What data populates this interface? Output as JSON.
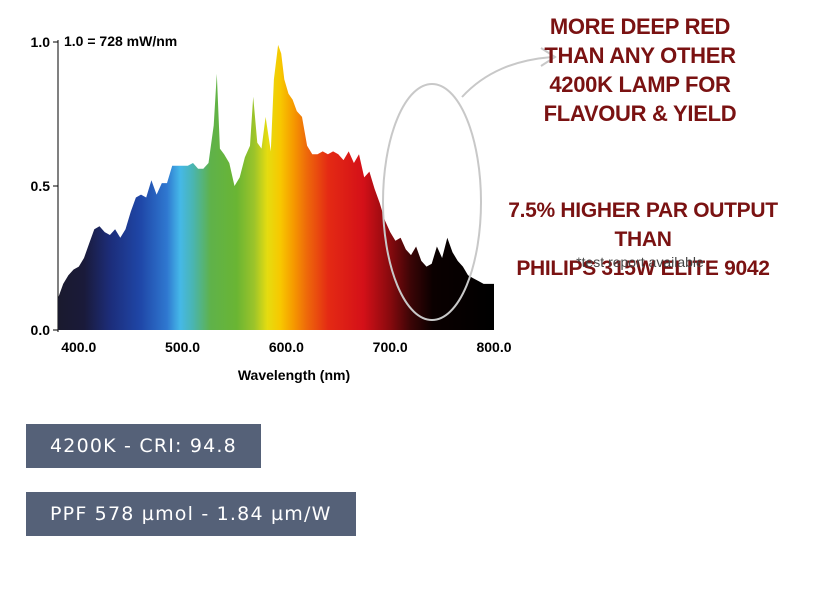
{
  "chart_data": {
    "type": "area",
    "title": "",
    "xlabel": "Wavelength (nm)",
    "ylabel": "",
    "unit_note": "1.0 = 728 mW/nm",
    "xlim": [
      380,
      800
    ],
    "ylim": [
      0,
      1.0
    ],
    "x_ticks": [
      {
        "value": 400,
        "label": "400.0"
      },
      {
        "value": 500,
        "label": "500.0"
      },
      {
        "value": 600,
        "label": "600.0"
      },
      {
        "value": 700,
        "label": "700.0"
      },
      {
        "value": 800,
        "label": "800.0"
      }
    ],
    "y_ticks": [
      {
        "value": 0.0,
        "label": "0.0"
      },
      {
        "value": 0.5,
        "label": "0.5"
      },
      {
        "value": 1.0,
        "label": "1.0"
      }
    ],
    "grid": false,
    "legend": "none",
    "fill": "visible spectrum gradient",
    "series": [
      {
        "x": [
          380,
          385,
          390,
          395,
          400,
          405,
          410,
          415,
          420,
          425,
          430,
          435,
          440,
          445,
          450,
          455,
          460,
          465,
          470,
          475,
          480,
          485,
          490,
          495,
          500,
          505,
          510,
          515,
          520,
          525,
          530,
          533,
          536,
          540,
          545,
          550,
          555,
          560,
          565,
          568,
          572,
          576,
          580,
          585,
          588,
          592,
          595,
          598,
          602,
          606,
          610,
          615,
          620,
          625,
          630,
          635,
          640,
          645,
          650,
          655,
          660,
          665,
          670,
          675,
          680,
          685,
          690,
          695,
          700,
          705,
          710,
          715,
          720,
          725,
          730,
          735,
          740,
          745,
          750,
          755,
          760,
          765,
          770,
          775,
          780,
          785,
          790,
          795,
          800
        ],
        "y": [
          0.11,
          0.16,
          0.19,
          0.21,
          0.22,
          0.25,
          0.3,
          0.35,
          0.36,
          0.34,
          0.33,
          0.35,
          0.32,
          0.35,
          0.41,
          0.46,
          0.47,
          0.46,
          0.52,
          0.47,
          0.51,
          0.51,
          0.57,
          0.57,
          0.57,
          0.57,
          0.58,
          0.56,
          0.56,
          0.58,
          0.71,
          0.89,
          0.63,
          0.61,
          0.58,
          0.5,
          0.53,
          0.6,
          0.64,
          0.81,
          0.65,
          0.63,
          0.74,
          0.62,
          0.87,
          0.99,
          0.96,
          0.87,
          0.82,
          0.8,
          0.76,
          0.74,
          0.64,
          0.61,
          0.61,
          0.62,
          0.61,
          0.62,
          0.61,
          0.59,
          0.62,
          0.58,
          0.61,
          0.53,
          0.55,
          0.49,
          0.44,
          0.38,
          0.34,
          0.31,
          0.32,
          0.28,
          0.26,
          0.29,
          0.24,
          0.22,
          0.23,
          0.29,
          0.25,
          0.32,
          0.27,
          0.24,
          0.22,
          0.19,
          0.18,
          0.17,
          0.16,
          0.16,
          0.16
        ]
      }
    ]
  },
  "annotations": {
    "deep_red": [
      "MORE DEEP RED",
      "THAN ANY OTHER",
      "4200K LAMP FOR",
      "FLAVOUR & YIELD"
    ],
    "par": [
      "7.5% HIGHER PAR OUTPUT THAN",
      "PHILIPS 315W ELITE 9042"
    ],
    "note": "*test report available"
  },
  "badges": {
    "cct_cri": "4200K - CRI: 94.8",
    "ppf": "PPF 578 µmol - 1.84 µm/W"
  },
  "colors": {
    "annotation_text": "#7a1212",
    "badge_bg": "#556178",
    "badge_text": "#ffffff",
    "ellipse_stroke": "#c8c8c8"
  }
}
